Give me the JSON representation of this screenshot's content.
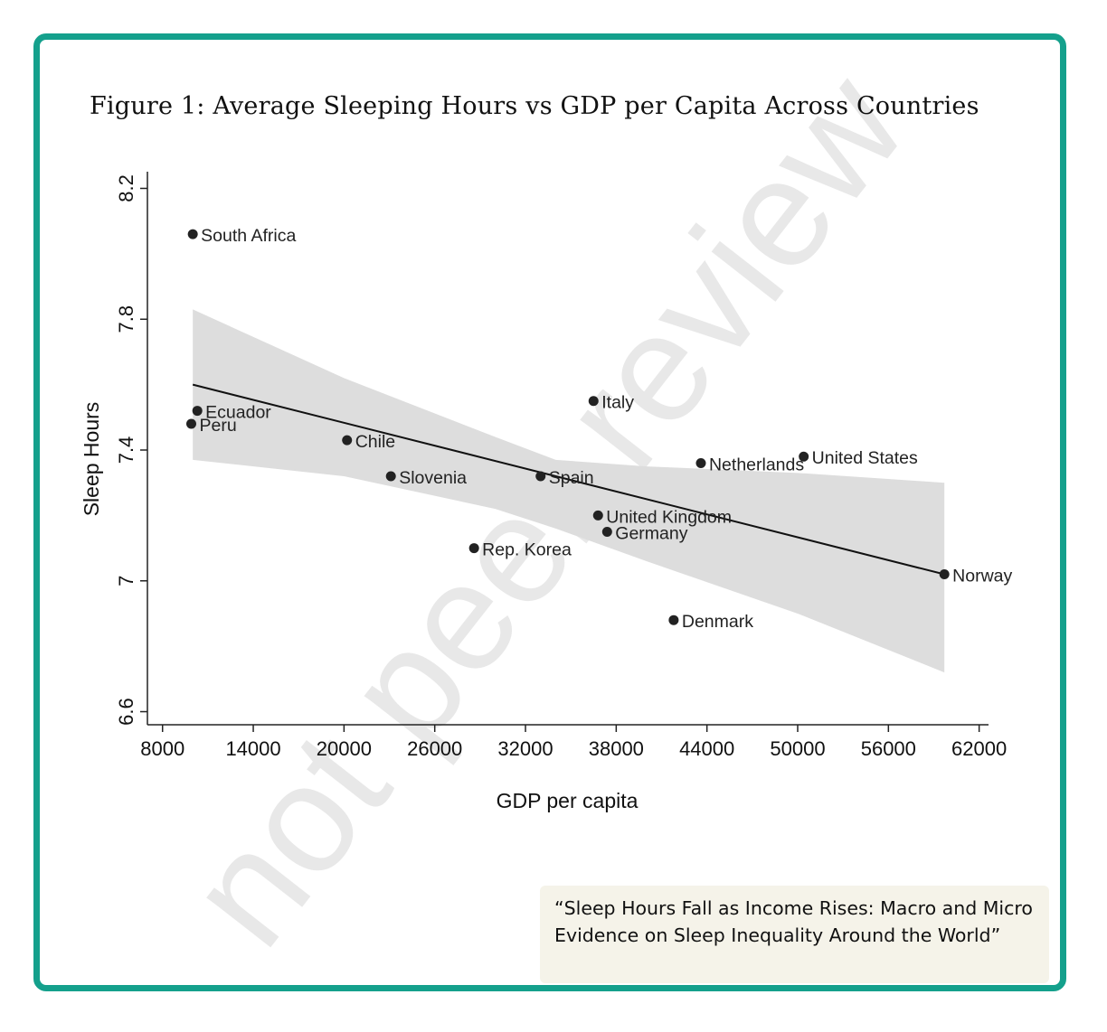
{
  "figure": {
    "title": "Figure 1: Average Sleeping Hours vs GDP per Capita Across Countries",
    "watermark": "not peer review",
    "caption": "“Sleep Hours Fall as Income Rises: Macro and Micro Evidence on Sleep Inequality Around the World”"
  },
  "colors": {
    "frame": "#14a08c",
    "point": "#222222",
    "line": "#111111",
    "ci_band": "#dddddd",
    "caption_bg": "#f5f3e9"
  },
  "chart_data": {
    "type": "scatter",
    "title": "",
    "xlabel": "GDP per capita",
    "ylabel": "Sleep Hours",
    "xlim": [
      7000,
      62500
    ],
    "ylim": [
      6.56,
      8.24
    ],
    "xticks": [
      8000,
      14000,
      20000,
      26000,
      32000,
      38000,
      44000,
      50000,
      56000,
      62000
    ],
    "yticks": [
      6.6,
      7,
      7.4,
      7.8,
      8.2
    ],
    "ytick_labels": [
      "6.6",
      "7",
      "7.4",
      "7.8",
      "8.2"
    ],
    "grid": false,
    "points": [
      {
        "label": "South Africa",
        "x": 10000,
        "y": 8.06
      },
      {
        "label": "Ecuador",
        "x": 10300,
        "y": 7.52
      },
      {
        "label": "Peru",
        "x": 9900,
        "y": 7.48
      },
      {
        "label": "Chile",
        "x": 20200,
        "y": 7.43
      },
      {
        "label": "Slovenia",
        "x": 23100,
        "y": 7.32
      },
      {
        "label": "Rep. Korea",
        "x": 28600,
        "y": 7.1
      },
      {
        "label": "Spain",
        "x": 33000,
        "y": 7.32
      },
      {
        "label": "Italy",
        "x": 36500,
        "y": 7.55
      },
      {
        "label": "United Kingdom",
        "x": 36800,
        "y": 7.2
      },
      {
        "label": "Germany",
        "x": 37400,
        "y": 7.15
      },
      {
        "label": "Denmark",
        "x": 41800,
        "y": 6.88
      },
      {
        "label": "Netherlands",
        "x": 43600,
        "y": 7.36
      },
      {
        "label": "United States",
        "x": 50400,
        "y": 7.38
      },
      {
        "label": "Norway",
        "x": 59700,
        "y": 7.02
      }
    ],
    "fit_line": {
      "x": [
        10000,
        59700
      ],
      "y": [
        7.6,
        7.02
      ]
    },
    "ci_band": {
      "x": [
        10000,
        20000,
        30000,
        34000,
        40000,
        50000,
        59700
      ],
      "upper": [
        7.83,
        7.62,
        7.44,
        7.37,
        7.35,
        7.33,
        7.3
      ],
      "lower": [
        7.37,
        7.32,
        7.22,
        7.16,
        7.06,
        6.9,
        6.72
      ]
    }
  }
}
